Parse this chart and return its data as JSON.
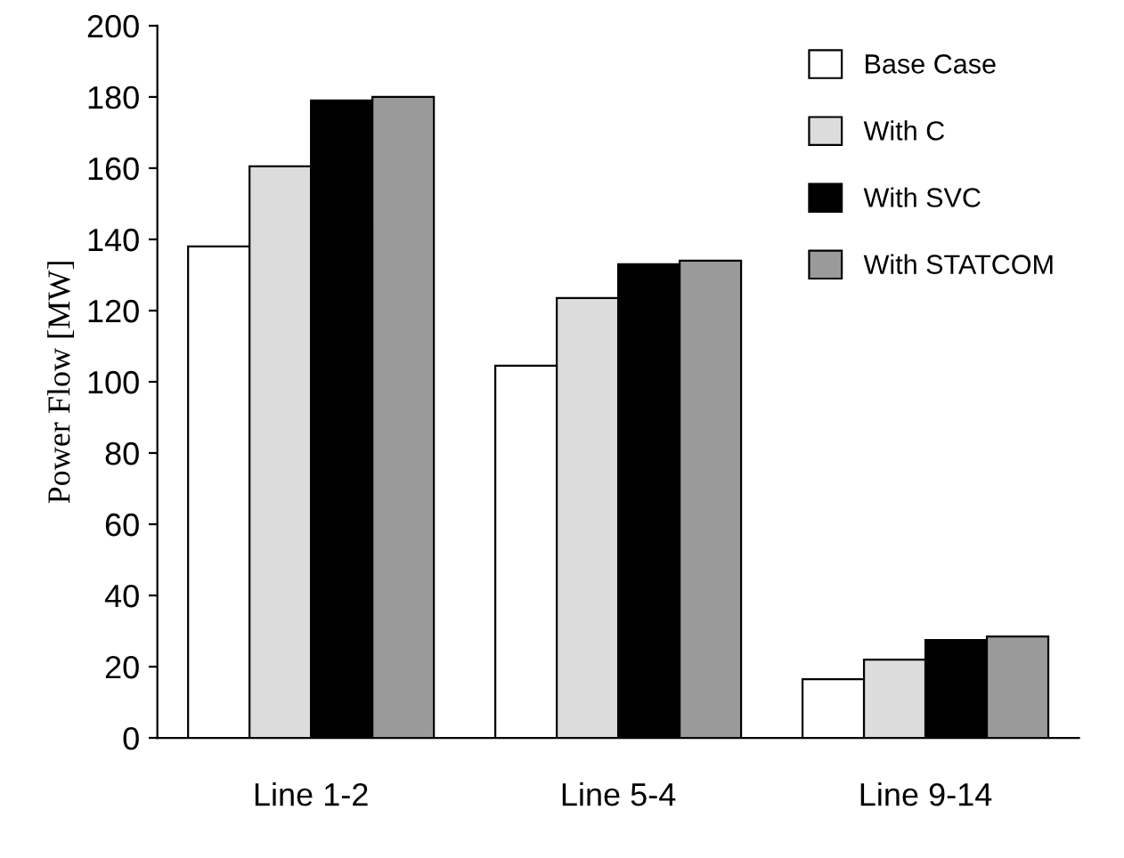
{
  "chart_data": {
    "type": "bar",
    "ylabel": "Power Flow [MW]",
    "categories": [
      "Line 1-2",
      "Line 5-4",
      "Line 9-14"
    ],
    "series": [
      {
        "name": "Base Case",
        "color": "#ffffff",
        "values": [
          138,
          104.5,
          16.5
        ]
      },
      {
        "name": "With C",
        "color": "#dcdcdc",
        "values": [
          160.5,
          123.5,
          22
        ]
      },
      {
        "name": "With SVC",
        "color": "#000000",
        "values": [
          179,
          133,
          27.5
        ]
      },
      {
        "name": "With STATCOM",
        "color": "#9a9a9a",
        "values": [
          180,
          134,
          28.5
        ]
      }
    ],
    "ylim": [
      0,
      200
    ],
    "yticks": [
      0,
      20,
      40,
      60,
      80,
      100,
      120,
      140,
      160,
      180,
      200
    ],
    "grid": false,
    "legend": "top right"
  }
}
